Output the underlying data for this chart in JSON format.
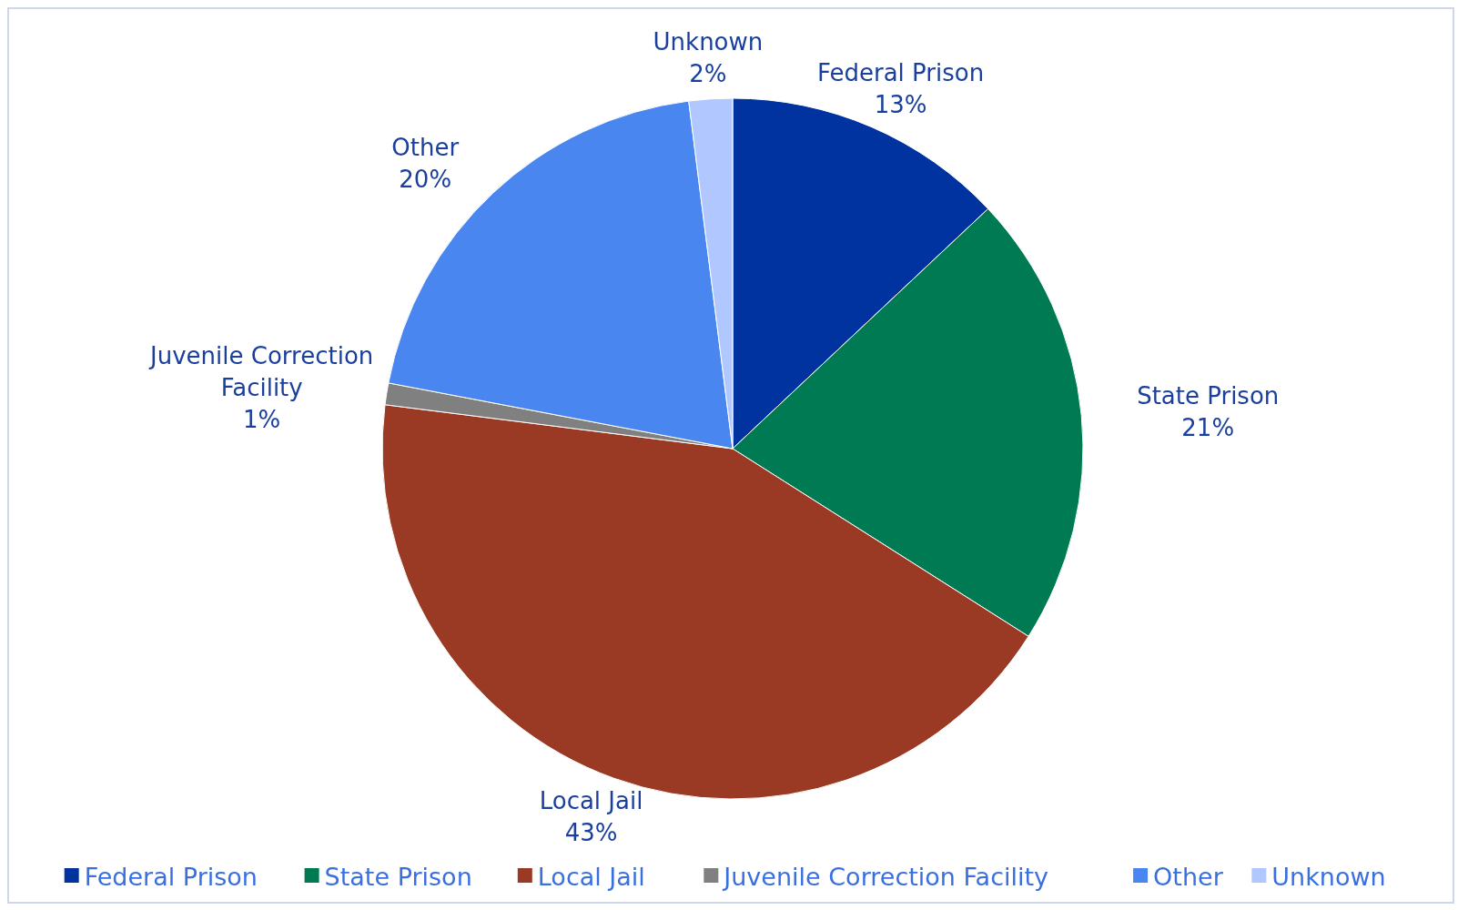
{
  "chart_data": {
    "type": "pie",
    "categories": [
      "Federal Prison",
      "State Prison",
      "Local Jail",
      "Juvenile Correction Facility",
      "Other",
      "Unknown"
    ],
    "values": [
      13,
      21,
      43,
      1,
      20,
      2
    ],
    "colors": [
      "#0033a0",
      "#007a53",
      "#9a3a24",
      "#808080",
      "#4a86f0",
      "#b0c8ff"
    ],
    "value_labels": [
      "13%",
      "21%",
      "43%",
      "1%",
      "20%",
      "2%"
    ],
    "legend": "bottom"
  }
}
